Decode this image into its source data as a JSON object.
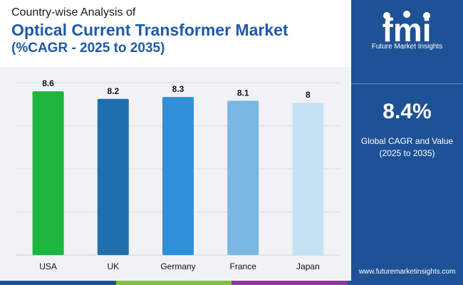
{
  "header": {
    "subtitle": "Country-wise Analysis of",
    "title": "Optical Current Transformer Market",
    "period": "(%CAGR - 2025 to 2035)"
  },
  "sidebar": {
    "logo_letters": "fmi",
    "logo_name": "Future Market Insights",
    "cagr_value": "8.4%",
    "cagr_label_line1": "Global CAGR and Value",
    "cagr_label_line2": "(2025 to 2035)",
    "website": "www.futuremarketinsights.com"
  },
  "colors": {
    "title": "#1e5aa8",
    "sidebar": "#1e5296",
    "strip": [
      "#1e5296",
      "#7bc143",
      "#8e3a96",
      "#1e5296"
    ]
  },
  "chart_data": {
    "type": "bar",
    "categories": [
      "USA",
      "UK",
      "Germany",
      "France",
      "Japan"
    ],
    "values": [
      8.6,
      8.2,
      8.3,
      8.1,
      8
    ],
    "value_labels": [
      "8.6",
      "8.2",
      "8.3",
      "8.1",
      "8"
    ],
    "colors": [
      "#1db53d",
      "#1f6fae",
      "#2f8fd8",
      "#7ab8e2",
      "#c4e2f1"
    ],
    "ylim": [
      0,
      9.5
    ],
    "grid": true,
    "title": "",
    "xlabel": "",
    "ylabel": ""
  }
}
